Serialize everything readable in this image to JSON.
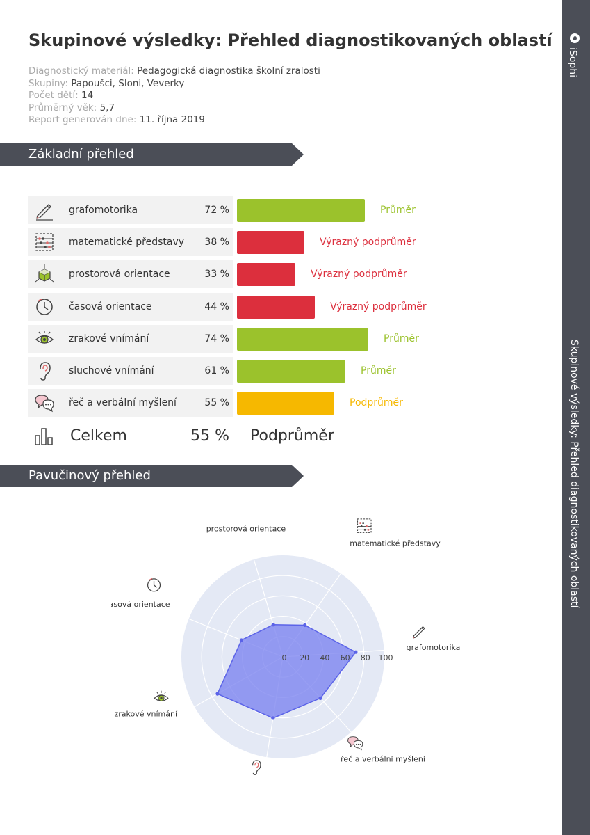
{
  "page": {
    "title": "Skupinové výsledky: Přehled diagnostikovaných oblastí",
    "brand": "iSophi",
    "side_title": "Skupinové výsledky: Přehled diagnostikovaných oblastí"
  },
  "meta": [
    {
      "label": "Diagnostický materiál:",
      "value": "Pedagogická diagnostika školní zralosti"
    },
    {
      "label": "Skupiny:",
      "value": "Papoušci, Sloni, Veverky"
    },
    {
      "label": "Počet dětí:",
      "value": "14"
    },
    {
      "label": "Průměrný věk:",
      "value": "5,7"
    },
    {
      "label": "Report generován dne:",
      "value": "11. října 2019"
    }
  ],
  "sections": {
    "basic": "Základní přehled",
    "radar": "Pavučinový přehled"
  },
  "colors": {
    "average": "#9bc22c",
    "strongly_below": "#dc2f3d",
    "below": "#f6b800",
    "banner": "#4b4e57",
    "radar_fill": "#7b83f0",
    "radar_stroke": "#5b63e8",
    "radar_bg": "#e4e9f5"
  },
  "rows": [
    {
      "icon": "pencil-icon",
      "label": "grafomotorika",
      "value": 72,
      "pct": "72 %",
      "rating": "Průměr",
      "color": "#9bc22c"
    },
    {
      "icon": "abacus-icon",
      "label": "matematické představy",
      "value": 38,
      "pct": "38 %",
      "rating": "Výrazný podprůměr",
      "color": "#dc2f3d"
    },
    {
      "icon": "cube-icon",
      "label": "prostorová orientace",
      "value": 33,
      "pct": "33 %",
      "rating": "Výrazný podprůměr",
      "color": "#dc2f3d"
    },
    {
      "icon": "clock-icon",
      "label": "časová orientace",
      "value": 44,
      "pct": "44 %",
      "rating": "Výrazný podprůměr",
      "color": "#dc2f3d"
    },
    {
      "icon": "eye-icon",
      "label": "zrakové vnímání",
      "value": 74,
      "pct": "74 %",
      "rating": "Průměr",
      "color": "#9bc22c"
    },
    {
      "icon": "ear-icon",
      "label": "sluchové vnímání",
      "value": 61,
      "pct": "61 %",
      "rating": "Průměr",
      "color": "#9bc22c"
    },
    {
      "icon": "speech-bubbles-icon",
      "label": "řeč a verbální myšlení",
      "value": 55,
      "pct": "55 %",
      "rating": "Podprůměr",
      "color": "#f6b800"
    }
  ],
  "total": {
    "icon": "bar-chart-icon",
    "label": "Celkem",
    "pct": "55 %",
    "rating": "Podprůměr"
  },
  "chart_data": {
    "type": "radar",
    "title": "",
    "range": [
      0,
      100
    ],
    "ticks": [
      0,
      20,
      40,
      60,
      80,
      100
    ],
    "categories": [
      "grafomotorika",
      "matematické představy",
      "prostorová orientace",
      "časová orientace",
      "zrakové vnímání",
      "sluchové vnímání",
      "řeč a verbální myšlení"
    ],
    "values": [
      72,
      38,
      33,
      44,
      74,
      61,
      55
    ],
    "axis_icons": [
      "pencil-icon",
      "abacus-icon",
      "cube-icon",
      "clock-icon",
      "eye-icon",
      "ear-icon",
      "speech-bubbles-icon"
    ],
    "grid": true
  }
}
